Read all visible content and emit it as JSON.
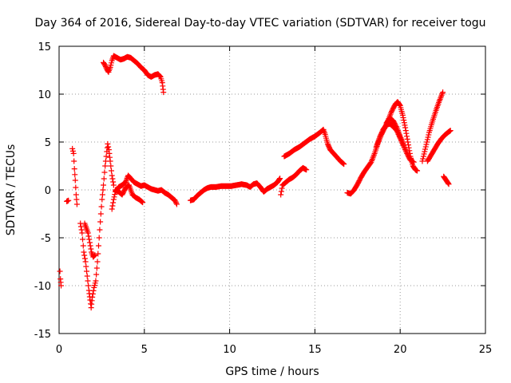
{
  "chart_data": {
    "type": "scatter",
    "title": "Day 364 of 2016, Sidereal Day-to-day VTEC variation (SDTVAR) for receiver togu",
    "xlabel": "GPS time / hours",
    "ylabel": "SDTVAR / TECUs",
    "xlim": [
      0,
      25
    ],
    "ylim": [
      -15,
      15
    ],
    "xticks": [
      0,
      5,
      10,
      15,
      20,
      25
    ],
    "yticks": [
      -15,
      -10,
      -5,
      0,
      5,
      10,
      15
    ],
    "xtick_labels": [
      "0",
      "5",
      "10",
      "15",
      "20",
      "25"
    ],
    "ytick_labels": [
      "-15",
      "-10",
      "-5",
      "0",
      "5",
      "10",
      "15"
    ],
    "grid": true,
    "marker": "+",
    "color": "#ff0000",
    "segments": [
      [
        [
          0.05,
          -8.5
        ],
        [
          0.08,
          -9.3
        ],
        [
          0.12,
          -10.0
        ]
      ],
      [
        [
          0.45,
          -1.2
        ],
        [
          0.55,
          -1.1
        ]
      ],
      [
        [
          0.78,
          4.3
        ],
        [
          0.85,
          3.8
        ],
        [
          0.9,
          2.2
        ],
        [
          0.95,
          1.0
        ],
        [
          1.0,
          -0.5
        ],
        [
          1.05,
          -1.5
        ]
      ],
      [
        [
          1.25,
          -3.5
        ],
        [
          1.35,
          -4.5
        ],
        [
          1.45,
          -6.5
        ],
        [
          1.55,
          -7.5
        ],
        [
          1.65,
          -9.0
        ],
        [
          1.75,
          -10.5
        ],
        [
          1.82,
          -11.5
        ],
        [
          1.88,
          -12.3
        ],
        [
          1.95,
          -11.2
        ],
        [
          2.05,
          -10.2
        ],
        [
          2.15,
          -9.5
        ],
        [
          2.25,
          -7.5
        ],
        [
          2.35,
          -5.0
        ],
        [
          2.45,
          -2.5
        ],
        [
          2.52,
          -1.0
        ],
        [
          2.6,
          0.5
        ],
        [
          2.7,
          2.5
        ],
        [
          2.8,
          4.0
        ],
        [
          2.85,
          4.8
        ],
        [
          2.92,
          4.2
        ],
        [
          3.0,
          3.0
        ],
        [
          3.1,
          1.5
        ],
        [
          3.2,
          0.5
        ]
      ],
      [
        [
          1.5,
          -3.5
        ],
        [
          1.6,
          -4.0
        ],
        [
          1.7,
          -4.5
        ],
        [
          1.8,
          -5.5
        ],
        [
          1.9,
          -6.5
        ],
        [
          2.0,
          -7.0
        ],
        [
          2.1,
          -6.8
        ]
      ],
      [
        [
          3.1,
          -2.0
        ],
        [
          3.2,
          -1.0
        ],
        [
          3.3,
          -0.2
        ],
        [
          3.5,
          0.3
        ],
        [
          3.7,
          0.5
        ],
        [
          3.9,
          0.8
        ],
        [
          4.05,
          1.5
        ],
        [
          4.2,
          1.2
        ],
        [
          4.4,
          0.8
        ],
        [
          4.6,
          0.6
        ],
        [
          4.8,
          0.4
        ],
        [
          5.0,
          0.5
        ],
        [
          5.2,
          0.3
        ],
        [
          5.4,
          0.1
        ],
        [
          5.6,
          0.0
        ],
        [
          5.8,
          -0.1
        ],
        [
          6.0,
          0.0
        ],
        [
          6.2,
          -0.3
        ],
        [
          6.4,
          -0.5
        ],
        [
          6.6,
          -0.8
        ],
        [
          6.8,
          -1.1
        ],
        [
          6.9,
          -1.5
        ]
      ],
      [
        [
          3.3,
          0.0
        ],
        [
          3.5,
          -0.2
        ],
        [
          3.7,
          -0.5
        ],
        [
          3.9,
          0.2
        ],
        [
          4.1,
          0.5
        ],
        [
          4.3,
          -0.5
        ],
        [
          4.5,
          -0.8
        ],
        [
          4.7,
          -1.0
        ],
        [
          4.9,
          -1.3
        ]
      ],
      [
        [
          2.6,
          13.3
        ],
        [
          2.7,
          13.0
        ],
        [
          2.8,
          12.6
        ],
        [
          2.9,
          12.3
        ],
        [
          3.0,
          12.8
        ],
        [
          3.1,
          13.5
        ],
        [
          3.2,
          14.0
        ],
        [
          3.4,
          13.8
        ],
        [
          3.6,
          13.6
        ],
        [
          3.8,
          13.7
        ],
        [
          4.0,
          13.9
        ],
        [
          4.2,
          13.8
        ],
        [
          4.4,
          13.5
        ],
        [
          4.6,
          13.2
        ],
        [
          4.8,
          12.8
        ],
        [
          5.0,
          12.5
        ],
        [
          5.2,
          12.0
        ],
        [
          5.4,
          11.8
        ],
        [
          5.6,
          12.0
        ],
        [
          5.8,
          12.1
        ],
        [
          5.95,
          11.8
        ],
        [
          6.05,
          11.2
        ],
        [
          6.1,
          10.5
        ],
        [
          6.12,
          10.2
        ]
      ],
      [
        [
          7.7,
          -1.1
        ],
        [
          7.9,
          -1.0
        ],
        [
          8.1,
          -0.6
        ],
        [
          8.3,
          -0.3
        ],
        [
          8.5,
          0.0
        ],
        [
          8.7,
          0.2
        ],
        [
          8.9,
          0.3
        ],
        [
          9.2,
          0.3
        ],
        [
          9.5,
          0.4
        ],
        [
          9.8,
          0.4
        ],
        [
          10.1,
          0.4
        ],
        [
          10.4,
          0.5
        ],
        [
          10.7,
          0.6
        ],
        [
          11.0,
          0.5
        ],
        [
          11.2,
          0.3
        ],
        [
          11.4,
          0.6
        ],
        [
          11.6,
          0.7
        ],
        [
          11.8,
          0.3
        ],
        [
          12.0,
          -0.2
        ],
        [
          12.2,
          0.1
        ],
        [
          12.4,
          0.3
        ],
        [
          12.6,
          0.5
        ],
        [
          12.8,
          0.8
        ],
        [
          12.95,
          1.2
        ]
      ],
      [
        [
          13.0,
          -0.5
        ],
        [
          13.1,
          0.5
        ],
        [
          13.3,
          0.8
        ],
        [
          13.5,
          1.1
        ],
        [
          13.7,
          1.3
        ],
        [
          13.9,
          1.6
        ],
        [
          14.1,
          2.0
        ],
        [
          14.3,
          2.3
        ],
        [
          14.5,
          2.1
        ]
      ],
      [
        [
          13.2,
          3.5
        ],
        [
          13.5,
          3.8
        ],
        [
          13.8,
          4.2
        ],
        [
          14.1,
          4.5
        ],
        [
          14.4,
          4.9
        ],
        [
          14.7,
          5.3
        ],
        [
          15.0,
          5.6
        ],
        [
          15.3,
          6.0
        ],
        [
          15.5,
          6.3
        ],
        [
          15.6,
          5.8
        ],
        [
          15.75,
          4.8
        ],
        [
          15.9,
          4.2
        ],
        [
          16.1,
          3.8
        ],
        [
          16.3,
          3.4
        ],
        [
          16.5,
          3.0
        ],
        [
          16.7,
          2.7
        ]
      ],
      [
        [
          16.9,
          -0.3
        ],
        [
          17.1,
          -0.4
        ],
        [
          17.3,
          0.0
        ],
        [
          17.5,
          0.6
        ],
        [
          17.7,
          1.3
        ],
        [
          17.9,
          1.9
        ],
        [
          18.1,
          2.4
        ],
        [
          18.3,
          2.9
        ],
        [
          18.5,
          3.8
        ],
        [
          18.7,
          4.9
        ],
        [
          18.9,
          5.8
        ],
        [
          19.1,
          6.5
        ],
        [
          19.3,
          7.3
        ],
        [
          19.5,
          8.2
        ],
        [
          19.7,
          8.9
        ],
        [
          19.85,
          9.2
        ],
        [
          20.0,
          8.8
        ],
        [
          20.15,
          7.8
        ],
        [
          20.3,
          6.5
        ],
        [
          20.45,
          5.0
        ],
        [
          20.6,
          3.5
        ],
        [
          20.75,
          2.5
        ],
        [
          20.9,
          2.1
        ],
        [
          21.0,
          2.0
        ]
      ],
      [
        [
          18.6,
          4.5
        ],
        [
          18.8,
          5.5
        ],
        [
          19.0,
          6.3
        ],
        [
          19.2,
          6.8
        ],
        [
          19.4,
          6.9
        ],
        [
          19.6,
          6.6
        ],
        [
          19.8,
          6.2
        ],
        [
          20.0,
          5.4
        ],
        [
          20.2,
          4.6
        ],
        [
          20.4,
          3.8
        ],
        [
          20.6,
          3.1
        ],
        [
          20.8,
          2.9
        ]
      ],
      [
        [
          19.2,
          7.0
        ],
        [
          19.4,
          7.5
        ],
        [
          19.6,
          7.2
        ],
        [
          19.8,
          6.5
        ],
        [
          20.0,
          5.6
        ],
        [
          20.2,
          4.7
        ]
      ],
      [
        [
          21.3,
          3.0
        ],
        [
          21.5,
          4.5
        ],
        [
          21.7,
          6.0
        ],
        [
          21.9,
          7.2
        ],
        [
          22.1,
          8.3
        ],
        [
          22.3,
          9.3
        ],
        [
          22.5,
          10.2
        ]
      ],
      [
        [
          21.6,
          3.0
        ],
        [
          21.8,
          3.6
        ],
        [
          22.0,
          4.2
        ],
        [
          22.2,
          4.8
        ],
        [
          22.4,
          5.3
        ],
        [
          22.6,
          5.7
        ],
        [
          22.8,
          6.0
        ],
        [
          22.95,
          6.2
        ]
      ],
      [
        [
          22.55,
          1.4
        ],
        [
          22.7,
          1.0
        ],
        [
          22.85,
          0.6
        ]
      ]
    ]
  }
}
